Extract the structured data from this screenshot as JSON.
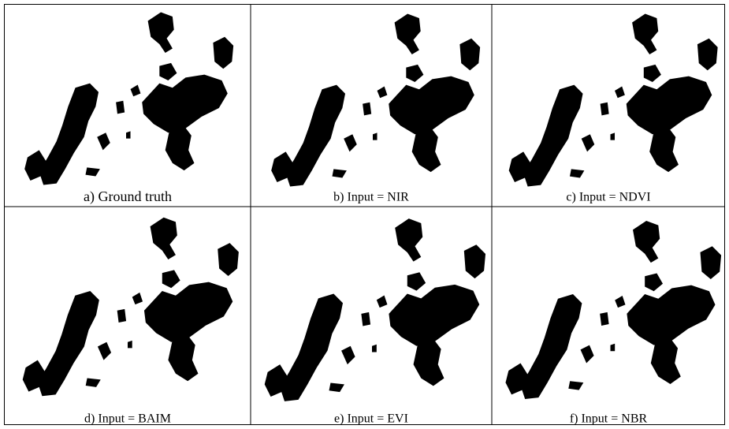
{
  "panels": [
    {
      "caption": "a) Ground truth"
    },
    {
      "caption": "b) Input = NIR"
    },
    {
      "caption": "c) Input = NDVI"
    },
    {
      "caption": "d) Input = BAIM"
    },
    {
      "caption": "e) Input = EVI"
    },
    {
      "caption": "f) Input = NBR"
    }
  ]
}
